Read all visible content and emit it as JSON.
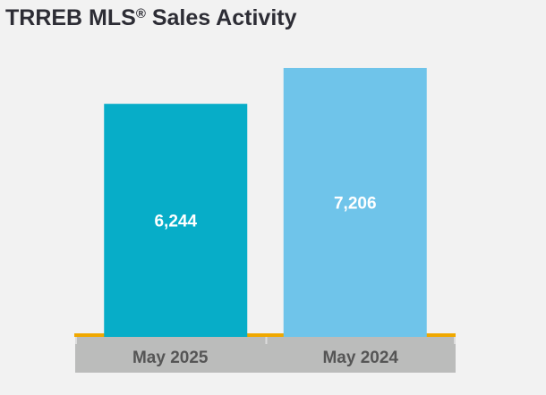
{
  "chart_data": {
    "type": "bar",
    "title": "TRREB MLS",
    "title_mark": "®",
    "title_suffix": " Sales Activity",
    "categories": [
      "May 2025",
      "May 2024"
    ],
    "values": [
      6244,
      7206
    ],
    "value_labels": [
      "6,244",
      "7,206"
    ],
    "colors": [
      "#07adc8",
      "#6fc4ea"
    ],
    "axis_color": "#f0a800",
    "category_band_color": "#bbbcbb",
    "xlabel": "",
    "ylabel": "",
    "ylim": [
      0,
      7206
    ],
    "grid": false,
    "legend": "none"
  }
}
